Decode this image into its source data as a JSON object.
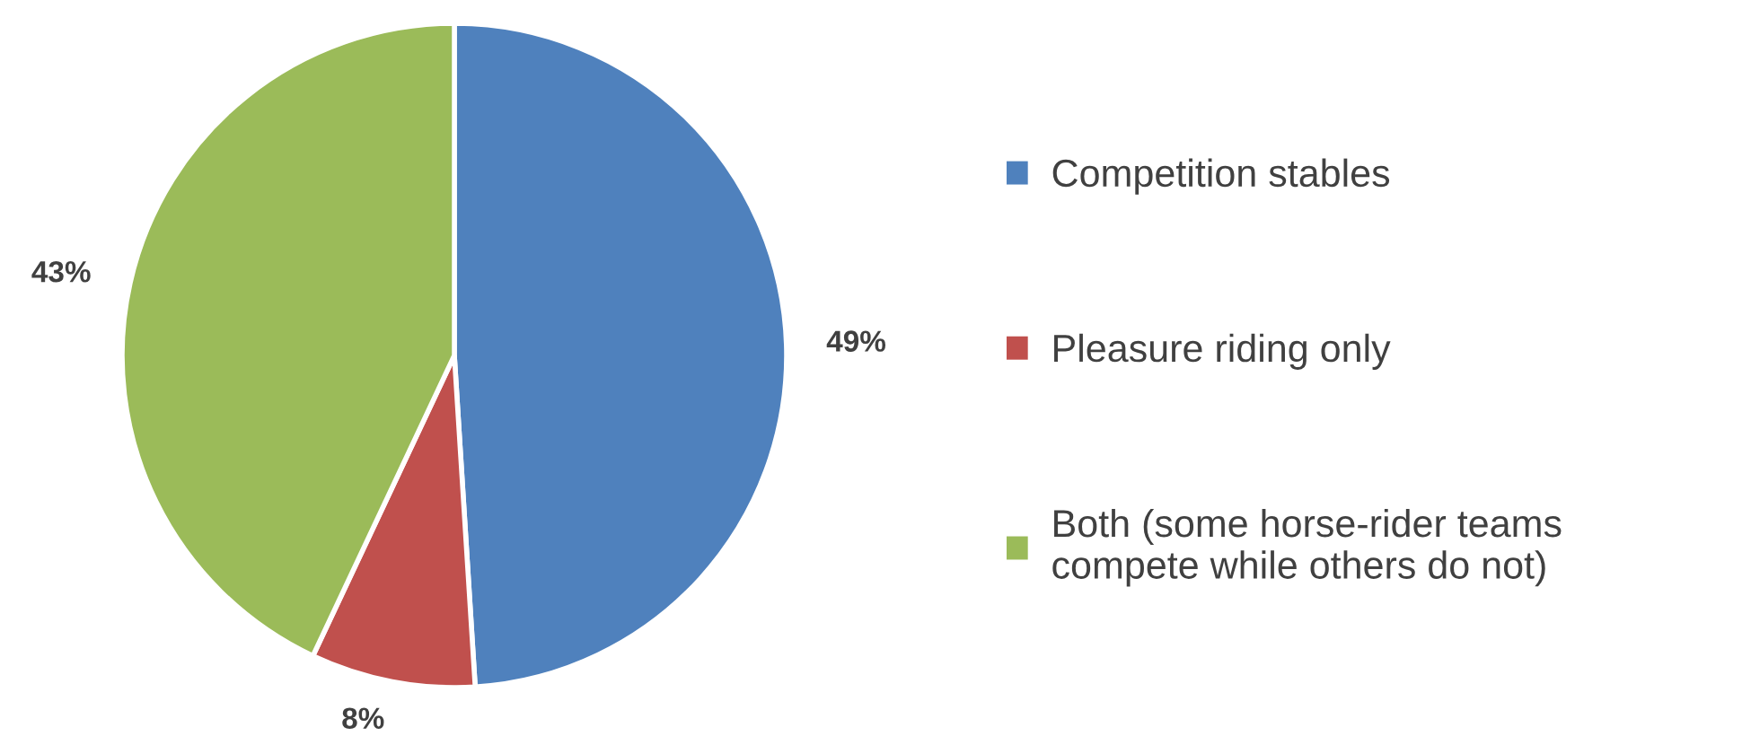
{
  "chart_data": {
    "type": "pie",
    "categories": [
      "Competition stables",
      "Pleasure riding only",
      "Both (some horse-rider teams\ncompete while others do not)"
    ],
    "values": [
      49,
      8,
      43
    ],
    "colors": [
      "#4f81bd",
      "#c0504d",
      "#9bbb59"
    ],
    "value_labels": [
      "49%",
      "8%",
      "43%"
    ],
    "legend": "right"
  }
}
